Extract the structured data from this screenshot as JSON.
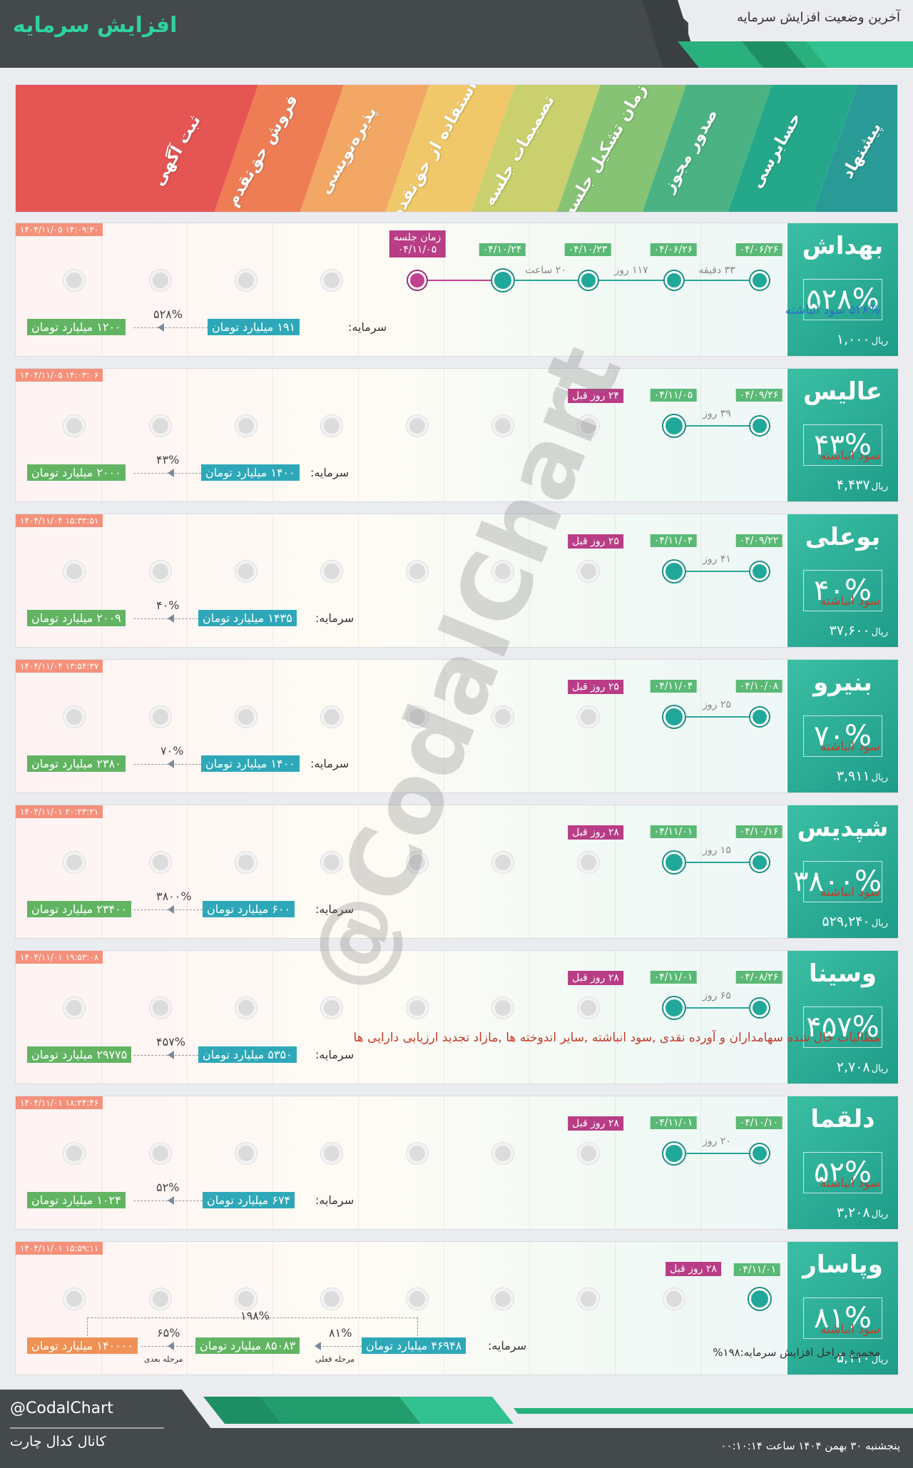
{
  "header": {
    "title": "افزایش سرمایه",
    "subtitle": "آخرین وضعیت افزایش سرمایه"
  },
  "stages": [
    "پیشنهاد",
    "حسابرسی",
    "صدور مجوز",
    "زمان تشکیل جلسه",
    "تصمیمات جلسه",
    "استفاده از حق‌تقدم",
    "پذیره‌نویسی",
    "فروش حق‌تقدم",
    "ثبت آگهی"
  ],
  "stage_colors": [
    "#2a9a97",
    "#25a88a",
    "#4bb383",
    "#86c374",
    "#c9d06d",
    "#f0c86a",
    "#f3a765",
    "#ee7d55",
    "#e55553"
  ],
  "rows": [
    {
      "symbol": "بهداش",
      "percent": "۵۲۸%",
      "price": "۱,۰۰۰",
      "price_unit": "ریال",
      "timestamp": "۱۴۰۴/۱۱/۰۵ ۱۴:۰۹:۳۰",
      "dates": [
        "۰۴/۰۶/۲۶",
        "۰۴/۰۶/۲۶",
        "۰۴/۱۰/۲۳",
        "۰۴/۱۰/۲۴"
      ],
      "meeting_label": "زمان جلسه",
      "meeting_date": "۰۴/۱۱/۰۵",
      "durations": [
        "۳۳ دقیقه",
        "۱۱۷ روز",
        "۲۰ ساعت"
      ],
      "desc": "۵۲۸% سود انباشته",
      "capital_label": "سرمایه:",
      "capital_from": "۱۹۱ میلیارد تومان",
      "increase": "۵۲۸%",
      "capital_to": "۱۲۰۰ میلیارد تومان"
    },
    {
      "symbol": "عالیس",
      "percent": "۴۳%",
      "price": "۴,۴۳۷",
      "price_unit": "ریال",
      "timestamp": "۱۴۰۴/۱۱/۰۵ ۱۴:۰۳:۰۶",
      "dates": [
        "۰۴/۰۹/۲۶",
        "۰۴/۱۱/۰۵"
      ],
      "ago": "۲۴ روز قبل",
      "duration": "۳۹ روز",
      "desc": "سود انباشته",
      "capital_label": "سرمایه:",
      "capital_from": "۱۴۰۰ میلیارد تومان",
      "increase": "۴۳%",
      "capital_to": "۲۰۰۰ میلیارد تومان"
    },
    {
      "symbol": "بوعلی",
      "percent": "۴۰%",
      "price": "۳۷,۶۰۰",
      "price_unit": "ریال",
      "timestamp": "۱۴۰۴/۱۱/۰۴ ۱۵:۳۲:۵۱",
      "dates": [
        "۰۴/۰۹/۲۲",
        "۰۴/۱۱/۰۴"
      ],
      "ago": "۲۵ روز قبل",
      "duration": "۴۱ روز",
      "desc": "سود انباشته",
      "capital_label": "سرمایه:",
      "capital_from": "۱۴۳۵ میلیارد تومان",
      "increase": "۴۰%",
      "capital_to": "۲۰۰۹ میلیارد تومان"
    },
    {
      "symbol": "بنیرو",
      "percent": "۷۰%",
      "price": "۳,۹۱۱",
      "price_unit": "ریال",
      "timestamp": "۱۴۰۴/۱۱/۰۴ ۱۳:۵۴:۳۷",
      "dates": [
        "۰۴/۱۰/۰۸",
        "۰۴/۱۱/۰۴"
      ],
      "ago": "۲۵ روز قبل",
      "duration": "۲۵ روز",
      "desc": "سود انباشته",
      "capital_label": "سرمایه:",
      "capital_from": "۱۴۰۰ میلیارد تومان",
      "increase": "۷۰%",
      "capital_to": "۲۳۸۰ میلیارد تومان"
    },
    {
      "symbol": "شپدیس",
      "percent": "۳۸۰۰%",
      "price": "۵۲۹,۲۴۰",
      "price_unit": "ریال",
      "timestamp": "۱۴۰۴/۱۱/۰۱ ۲۰:۲۳:۲۱",
      "dates": [
        "۰۴/۱۰/۱۶",
        "۰۴/۱۱/۰۱"
      ],
      "ago": "۲۸ روز قبل",
      "duration": "۱۵ روز",
      "desc": "سود انباشته",
      "capital_label": "سرمایه:",
      "capital_from": "۶۰۰ میلیارد تومان",
      "increase": "۳۸۰۰%",
      "capital_to": "۲۳۴۰۰ میلیارد تومان"
    },
    {
      "symbol": "وسینا",
      "percent": "۴۵۷%",
      "price": "۲,۷۰۸",
      "price_unit": "ریال",
      "timestamp": "۱۴۰۴/۱۱/۰۱ ۱۹:۵۳:۰۸",
      "dates": [
        "۰۴/۰۸/۲۶",
        "۰۴/۱۱/۰۱"
      ],
      "ago": "۲۸ روز قبل",
      "duration": "۶۵ روز",
      "desc": "مطالبات حال شده سهامداران و آورده نقدی ,سود انباشته ,سایر اندوخته ها ,مازاد تجدید ارزیابی دارایی ها",
      "capital_label": "سرمایه:",
      "capital_from": "۵۳۵۰ میلیارد تومان",
      "increase": "۴۵۷%",
      "capital_to": "۲۹۷۷۵ میلیارد تومان"
    },
    {
      "symbol": "دلقما",
      "percent": "۵۲%",
      "price": "۳,۲۰۸",
      "price_unit": "ریال",
      "timestamp": "۱۴۰۴/۱۱/۰۱ ۱۸:۲۴:۴۶",
      "dates": [
        "۰۴/۱۰/۱۰",
        "۰۴/۱۱/۰۱"
      ],
      "ago": "۲۸ روز قبل",
      "duration": "۲۰ روز",
      "desc": "سود انباشته",
      "capital_label": "سرمایه:",
      "capital_from": "۶۷۴ میلیارد تومان",
      "increase": "۵۲%",
      "capital_to": "۱۰۲۴ میلیارد تومان"
    },
    {
      "symbol": "وپاسار",
      "percent": "۸۱%",
      "price": "۵,۱۱۰",
      "price_unit": "ریال",
      "timestamp": "۱۴۰۴/۱۱/۰۱ ۱۵:۵۹:۱۱",
      "dates": [
        "۰۴/۱۱/۰۱"
      ],
      "ago": "۲۸ روز قبل",
      "desc": "سود انباشته",
      "total_label": "مجموع مراحل افزایش سرمایه:۱۹۸%",
      "capital_label": "سرمایه:",
      "capital_from": "۴۶۹۴۸ میلیارد تومان",
      "increase": "۸۱%",
      "capital_mid": "۸۵۰۸۳ میلیارد تومان",
      "increase2": "۶۵%",
      "capital_to": "۱۴۰۰۰۰ میلیارد تومان",
      "total_increase": "۱۹۸%",
      "stage_current": "مرحله فعلی",
      "stage_next": "مرحله بعدی"
    }
  ],
  "watermark": "@CodalChart",
  "footer": {
    "handle": "@CodalChart",
    "channel": "کانال کدال چارت",
    "datetime": "پنجشنبه ۳۰ بهمن ۱۴۰۴ ساعت ۰۰:۱۰:۱۴"
  }
}
